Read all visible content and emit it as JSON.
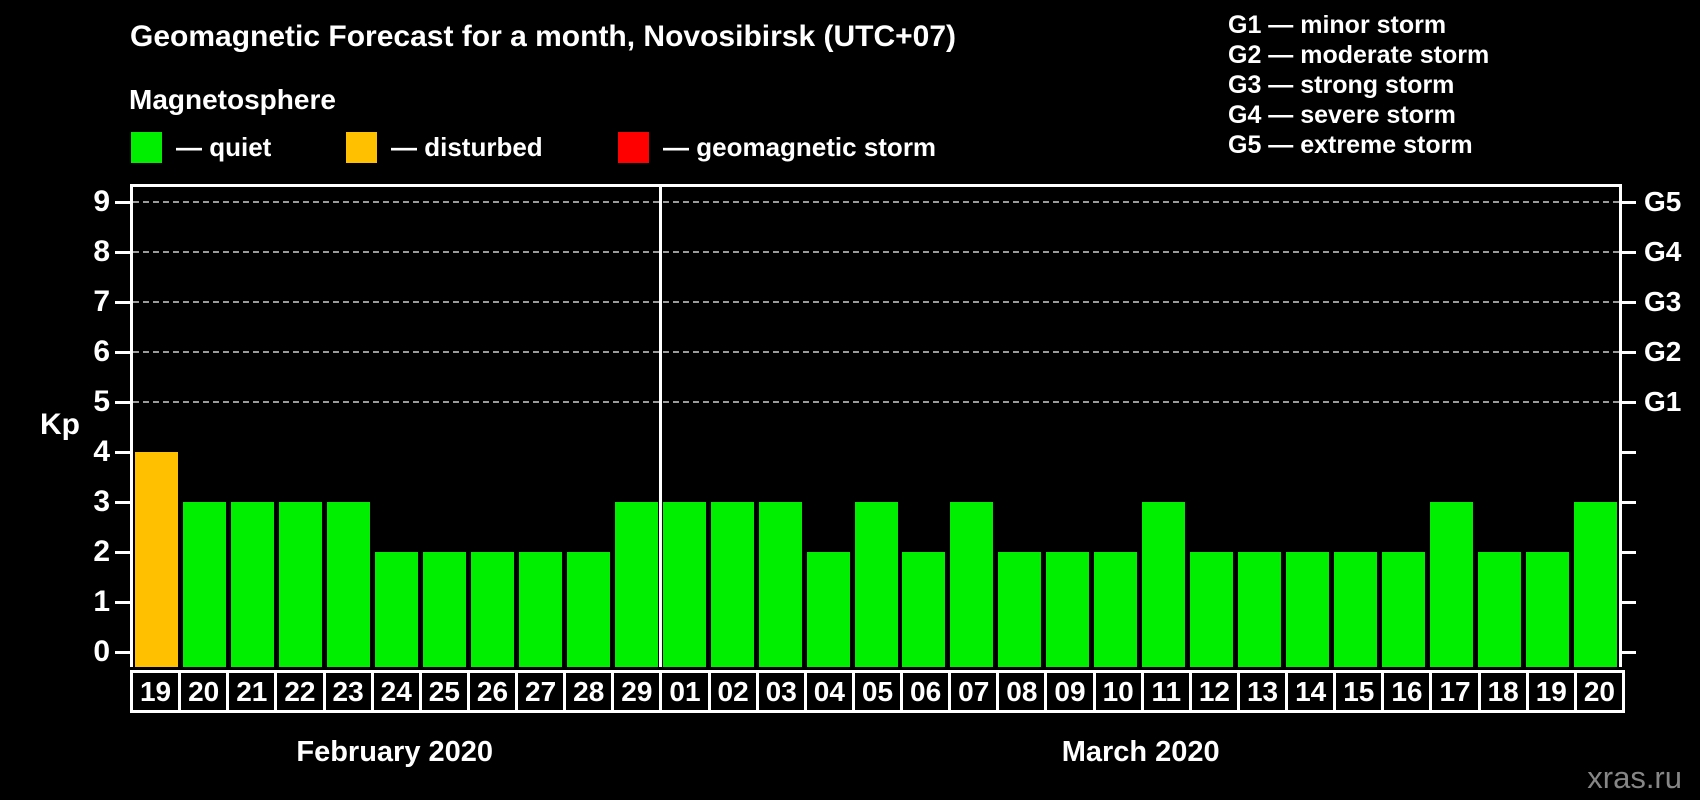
{
  "title": "Geomagnetic Forecast for a month, Novosibirsk (UTC+07)",
  "subtitle": "Magnetosphere",
  "watermark": "xras.ru",
  "axis": {
    "y_label": "Kp"
  },
  "dash": "—",
  "legend": [
    {
      "status": "quiet",
      "label": "quiet",
      "color": "#00ee00"
    },
    {
      "status": "disturbed",
      "label": "disturbed",
      "color": "#ffc000"
    },
    {
      "status": "storm",
      "label": "geomagnetic storm",
      "color": "#ff0000"
    }
  ],
  "storm_scale": [
    {
      "code": "G1",
      "label": "minor storm"
    },
    {
      "code": "G2",
      "label": "moderate storm"
    },
    {
      "code": "G3",
      "label": "strong storm"
    },
    {
      "code": "G4",
      "label": "severe storm"
    },
    {
      "code": "G5",
      "label": "extreme storm"
    }
  ],
  "chart_data": {
    "type": "bar",
    "title": "Geomagnetic Forecast for a month, Novosibirsk (UTC+07)",
    "ylabel": "Kp",
    "ylim": [
      0,
      9
    ],
    "y_ticks": [
      0,
      1,
      2,
      3,
      4,
      5,
      6,
      7,
      8,
      9
    ],
    "grid_levels": [
      5,
      6,
      7,
      8,
      9
    ],
    "grid_style": "dashed horizontal",
    "right_axis_labels": {
      "5": "G1",
      "6": "G2",
      "7": "G3",
      "8": "G4",
      "9": "G5"
    },
    "months": [
      {
        "label": "February 2020",
        "days": [
          "19",
          "20",
          "21",
          "22",
          "23",
          "24",
          "25",
          "26",
          "27",
          "28",
          "29"
        ],
        "values": [
          4,
          3,
          3,
          3,
          3,
          2,
          2,
          2,
          2,
          2,
          3
        ],
        "statuses": [
          "disturbed",
          "quiet",
          "quiet",
          "quiet",
          "quiet",
          "quiet",
          "quiet",
          "quiet",
          "quiet",
          "quiet",
          "quiet"
        ]
      },
      {
        "label": "March 2020",
        "days": [
          "01",
          "02",
          "03",
          "04",
          "05",
          "06",
          "07",
          "08",
          "09",
          "10",
          "11",
          "12",
          "13",
          "14",
          "15",
          "16",
          "17",
          "18",
          "19",
          "20"
        ],
        "values": [
          3,
          3,
          3,
          2,
          3,
          2,
          3,
          2,
          2,
          2,
          3,
          2,
          2,
          2,
          2,
          2,
          3,
          2,
          2,
          3
        ],
        "statuses": [
          "quiet",
          "quiet",
          "quiet",
          "quiet",
          "quiet",
          "quiet",
          "quiet",
          "quiet",
          "quiet",
          "quiet",
          "quiet",
          "quiet",
          "quiet",
          "quiet",
          "quiet",
          "quiet",
          "quiet",
          "quiet",
          "quiet",
          "quiet"
        ]
      }
    ]
  },
  "colors": {
    "background": "#000000",
    "text": "#ffffff",
    "grid": "#9b9b9b",
    "axis": "#ffffff",
    "quiet": "#00ee00",
    "disturbed": "#ffc000",
    "storm": "#ff0000",
    "watermark": "#868686"
  }
}
